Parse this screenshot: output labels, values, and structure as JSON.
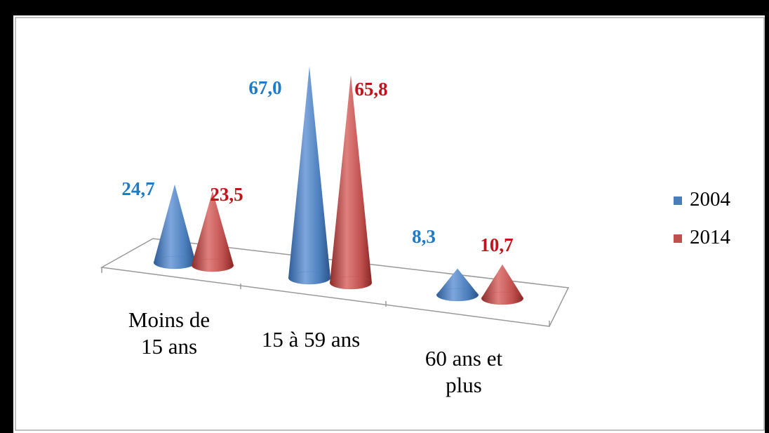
{
  "chart_data": {
    "type": "bar",
    "categories": [
      "Moins de 15 ans",
      "15 à 59 ans",
      "60 ans et plus"
    ],
    "category_lines": [
      [
        "Moins de",
        "15 ans"
      ],
      [
        "15 à 59 ans"
      ],
      [
        "60 ans et",
        "plus"
      ]
    ],
    "series": [
      {
        "name": "2004",
        "values": [
          24.7,
          67.0,
          8.3
        ],
        "labels": [
          "24,7",
          "67,0",
          "8,3"
        ],
        "color": "#4a7ebb",
        "label_color": "#1f7ac8"
      },
      {
        "name": "2014",
        "values": [
          23.5,
          65.8,
          10.7
        ],
        "labels": [
          "23,5",
          "65,8",
          "10,7"
        ],
        "color": "#c0504d",
        "label_color": "#c0141c"
      }
    ],
    "shape": "cone",
    "legend_position": "right",
    "grid": false
  }
}
